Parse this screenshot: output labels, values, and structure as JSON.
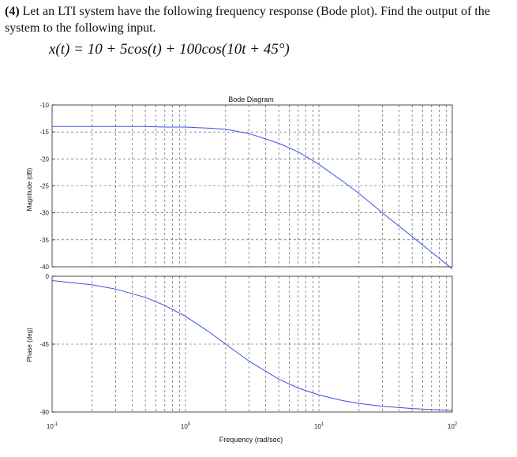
{
  "problem": {
    "number": "(4)",
    "text": "Let an LTI system have the following frequency response (Bode plot). Find the output of the system to the following input.",
    "equation": "x(t) = 10 + 5cos(t) + 100cos(10t + 45°)"
  },
  "chart_data": [
    {
      "type": "line",
      "title": "Bode Diagram",
      "xlabel": "Frequency (rad/sec)",
      "ylabel": "Magnitude (dB)",
      "xscale": "log",
      "xlim": [
        0.1,
        100
      ],
      "ylim": [
        -40,
        -10
      ],
      "xticks": [
        {
          "base": "10",
          "exp": "-1"
        },
        {
          "base": "10",
          "exp": "0"
        },
        {
          "base": "10",
          "exp": "1"
        },
        {
          "base": "10",
          "exp": "2"
        }
      ],
      "yticks": [
        "-10",
        "-15",
        "-20",
        "-25",
        "-30",
        "-35",
        "-40"
      ],
      "grid": true,
      "series": [
        {
          "color": "#3a50e0",
          "x": [
            0.1,
            0.3,
            0.5,
            0.7,
            1,
            1.5,
            2,
            3,
            5,
            7,
            10,
            15,
            20,
            30,
            50,
            70,
            100
          ],
          "y": [
            -14,
            -14,
            -14,
            -14.1,
            -14.1,
            -14.3,
            -14.5,
            -15.3,
            -17.1,
            -18.7,
            -21,
            -24.1,
            -26.4,
            -30,
            -34.4,
            -37.3,
            -40.4
          ]
        }
      ]
    },
    {
      "type": "line",
      "xlabel": "Frequency (rad/sec)",
      "ylabel": "Phase (deg)",
      "xscale": "log",
      "xlim": [
        0.1,
        100
      ],
      "ylim": [
        -90,
        0
      ],
      "yticks": [
        "0",
        "-45",
        "-90"
      ],
      "grid": true,
      "series": [
        {
          "color": "#3a50e0",
          "x": [
            0.1,
            0.2,
            0.3,
            0.5,
            0.7,
            1,
            1.5,
            2,
            3,
            5,
            7,
            10,
            15,
            20,
            30,
            50,
            70,
            100
          ],
          "y": [
            -2.9,
            -5.7,
            -8.5,
            -14,
            -19.3,
            -26.6,
            -36.9,
            -45,
            -56.3,
            -68.2,
            -74.1,
            -78.7,
            -82.4,
            -84.3,
            -86.2,
            -87.7,
            -88.4,
            -88.9
          ]
        }
      ]
    }
  ]
}
